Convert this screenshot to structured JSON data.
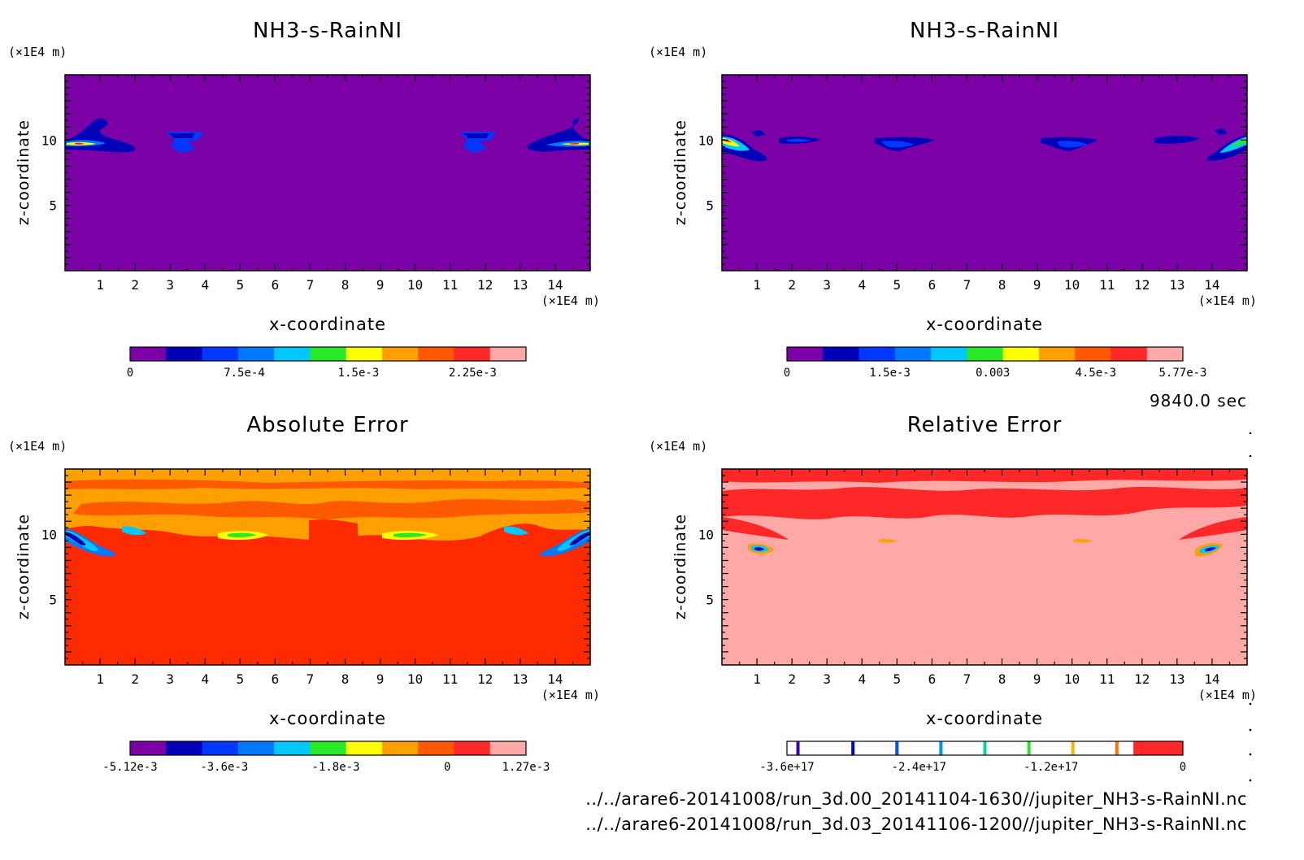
{
  "chart_data": [
    {
      "type": "heatmap",
      "title": "NH3-s-RainNI",
      "xlabel": "x-coordinate",
      "ylabel": "z-coordinate",
      "x_unit": "(×1E4 m)",
      "y_unit": "(×1E4 m)",
      "xlim": [
        0,
        15
      ],
      "ylim": [
        0,
        15
      ],
      "x_ticks": [
        "1",
        "2",
        "3",
        "4",
        "5",
        "6",
        "7",
        "8",
        "9",
        "10",
        "11",
        "12",
        "13",
        "14"
      ],
      "y_ticks": [
        "5",
        "10"
      ],
      "colorbar": {
        "colors": [
          "#7b00a6",
          "#0000b8",
          "#0038ff",
          "#0078ff",
          "#00c8ff",
          "#28e828",
          "#ffff00",
          "#ffa000",
          "#ff5a00",
          "#ff2828",
          "#ffa8a8"
        ],
        "ticks": [
          "0",
          "7.5e-4",
          "1.5e-3",
          "2.25e-3"
        ],
        "tick_values": [
          0,
          0.00075,
          0.0015,
          0.00225
        ],
        "range": [
          0,
          0.0026
        ]
      },
      "background": "#7b00a6"
    },
    {
      "type": "heatmap",
      "title": "NH3-s-RainNI",
      "xlabel": "x-coordinate",
      "ylabel": "z-coordinate",
      "x_unit": "(×1E4 m)",
      "y_unit": "(×1E4 m)",
      "xlim": [
        0,
        15
      ],
      "ylim": [
        0,
        15
      ],
      "x_ticks": [
        "1",
        "2",
        "3",
        "4",
        "5",
        "6",
        "7",
        "8",
        "9",
        "10",
        "11",
        "12",
        "13",
        "14"
      ],
      "y_ticks": [
        "5",
        "10"
      ],
      "colorbar": {
        "colors": [
          "#7b00a6",
          "#0000b8",
          "#0038ff",
          "#0078ff",
          "#00c8ff",
          "#28e828",
          "#ffff00",
          "#ffa000",
          "#ff5a00",
          "#ff2828",
          "#ffa8a8"
        ],
        "ticks": [
          "0",
          "1.5e-3",
          "0.003",
          "4.5e-3",
          "5.77e-3"
        ],
        "tick_values": [
          0,
          0.0015,
          0.003,
          0.0045,
          0.00577
        ],
        "range": [
          0,
          0.00577
        ]
      },
      "background": "#7b00a6"
    },
    {
      "type": "heatmap",
      "title": "Absolute Error",
      "xlabel": "x-coordinate",
      "ylabel": "z-coordinate",
      "x_unit": "(×1E4 m)",
      "y_unit": "(×1E4 m)",
      "xlim": [
        0,
        15
      ],
      "ylim": [
        0,
        15
      ],
      "x_ticks": [
        "1",
        "2",
        "3",
        "4",
        "5",
        "6",
        "7",
        "8",
        "9",
        "10",
        "11",
        "12",
        "13",
        "14"
      ],
      "y_ticks": [
        "5",
        "10"
      ],
      "colorbar": {
        "colors": [
          "#7b00a6",
          "#0000b8",
          "#0038ff",
          "#0078ff",
          "#00c8ff",
          "#28e828",
          "#ffff00",
          "#ffa000",
          "#ff5a00",
          "#ff2828",
          "#ffa8a8"
        ],
        "ticks": [
          "-5.12e-3",
          "-3.6e-3",
          "-1.8e-3",
          "0",
          "1.27e-3"
        ],
        "tick_values": [
          -0.00512,
          -0.0036,
          -0.0018,
          0,
          0.00127
        ],
        "range": [
          -0.00512,
          0.00127
        ]
      },
      "background": "#ff2a00"
    },
    {
      "type": "heatmap",
      "title": "Relative Error",
      "xlabel": "x-coordinate",
      "ylabel": "z-coordinate",
      "x_unit": "(×1E4 m)",
      "y_unit": "(×1E4 m)",
      "xlim": [
        0,
        15
      ],
      "ylim": [
        0,
        15
      ],
      "x_ticks": [
        "1",
        "2",
        "3",
        "4",
        "5",
        "6",
        "7",
        "8",
        "9",
        "10",
        "11",
        "12",
        "13",
        "14"
      ],
      "y_ticks": [
        "5",
        "10"
      ],
      "colorbar": {
        "lines": [
          {
            "value": -3.5e+17,
            "color": "#3a00c0"
          },
          {
            "value": -3e+17,
            "color": "#0000d0"
          },
          {
            "value": -2.6e+17,
            "color": "#0050ff"
          },
          {
            "value": -2.2e+17,
            "color": "#0090ff"
          },
          {
            "value": -1.8e+17,
            "color": "#00d890"
          },
          {
            "value": -1.4e+17,
            "color": "#30e030"
          },
          {
            "value": -1e+17,
            "color": "#ffb000"
          },
          {
            "value": -6e+16,
            "color": "#ff7000"
          }
        ],
        "fill_color": "#ff2828",
        "fill_from": -4.5e+16,
        "ticks": [
          "-3.6e+17",
          "-2.4e+17",
          "-1.2e+17",
          "0"
        ],
        "tick_values": [
          -3.6e+17,
          -2.4e+17,
          -1.2e+17,
          0
        ],
        "range": [
          -3.6e+17,
          0
        ]
      },
      "background": "#ffa8a8"
    }
  ],
  "time_label": "9840.0 sec",
  "file_paths": [
    "../../arare6-20141008/run_3d.00_20141104-1630//jupiter_NH3-s-RainNI.nc",
    "../../arare6-20141008/run_3d.03_20141106-1200//jupiter_NH3-s-RainNI.nc"
  ]
}
